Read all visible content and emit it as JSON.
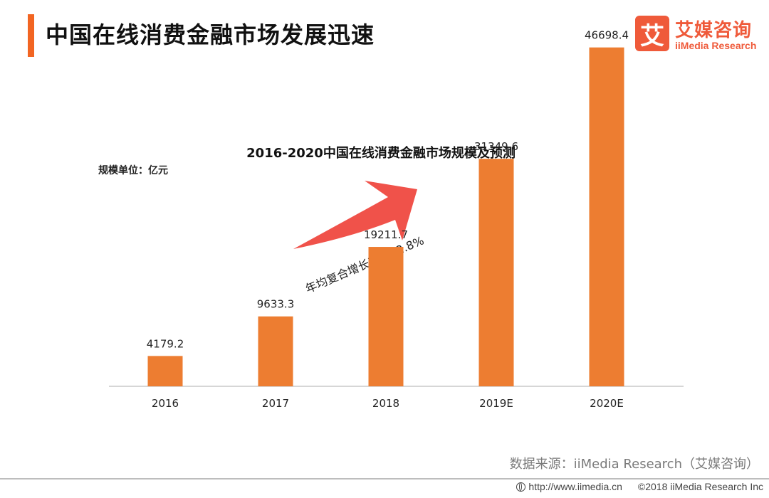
{
  "page": {
    "title": "中国在线消费金融市场发展迅速"
  },
  "logo": {
    "mark": "艾",
    "name_cn": "艾媒咨询",
    "name_en": "iiMedia Research"
  },
  "chart_data": {
    "type": "bar",
    "title": "2016-2020中国在线消费金融市场规模及预测",
    "unit_label": "规模单位：亿元",
    "categories": [
      "2016",
      "2017",
      "2018",
      "2019E",
      "2020E"
    ],
    "values": [
      4179.2,
      9633.3,
      19211.7,
      31349.6,
      46698.4
    ],
    "value_labels": [
      "4179.2",
      "9633.3",
      "19211.7",
      "31349.6",
      "46698.4"
    ],
    "ylim": [
      0,
      50000
    ],
    "grid": false,
    "legend": "none",
    "bar_color": "#ed7d31",
    "annotation": {
      "text": "年均复合增长率：82.8%",
      "arrow_color": "#f0524a"
    }
  },
  "source": "数据来源：iiMedia Research（艾媒咨询）",
  "footer": {
    "url": "http://www.iimedia.cn",
    "copyright": "©2018  iiMedia Research Inc"
  },
  "colors": {
    "accent": "#f26522",
    "brand": "#ef5a3a"
  }
}
